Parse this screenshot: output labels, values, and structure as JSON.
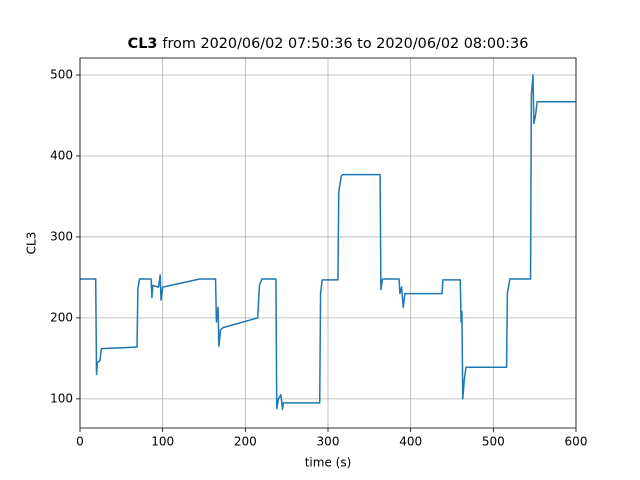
{
  "chart_data": {
    "type": "line",
    "title_bold": "CL3",
    "title": "from 2020/06/02 07:50:36 to 2020/06/02 08:00:36",
    "xlabel": "time (s)",
    "ylabel": "CL3",
    "xlim": [
      0,
      600
    ],
    "ylim": [
      64,
      521
    ],
    "xticks": [
      0,
      100,
      200,
      300,
      400,
      500,
      600
    ],
    "yticks": [
      100,
      200,
      300,
      400,
      500
    ],
    "grid": true,
    "series": [
      {
        "name": "CL3",
        "color": "#1f77b4",
        "x": [
          0,
          19,
          20,
          21,
          24,
          26,
          69,
          70,
          72,
          86,
          87,
          88,
          95,
          97,
          98,
          100,
          145,
          164,
          165,
          167,
          168,
          170,
          173,
          215,
          217,
          220,
          237,
          238,
          240,
          243,
          245,
          246,
          290,
          291,
          293,
          312,
          313,
          316,
          318,
          363,
          364,
          366,
          386,
          387,
          389,
          391,
          393,
          438,
          439,
          460,
          461,
          462,
          463,
          465,
          467,
          516,
          517,
          520,
          545,
          546,
          548,
          549,
          551,
          553,
          600
        ],
        "values": [
          248,
          248,
          130,
          145,
          147,
          162,
          164,
          235,
          248,
          248,
          225,
          240,
          238,
          253,
          222,
          238,
          248,
          248,
          195,
          213,
          165,
          185,
          188,
          200,
          240,
          248,
          248,
          88,
          100,
          105,
          87,
          95,
          95,
          230,
          247,
          247,
          355,
          375,
          377,
          377,
          235,
          248,
          248,
          230,
          238,
          213,
          230,
          230,
          247,
          247,
          195,
          208,
          100,
          125,
          139,
          139,
          230,
          248,
          248,
          475,
          500,
          440,
          450,
          467,
          467
        ]
      }
    ]
  }
}
